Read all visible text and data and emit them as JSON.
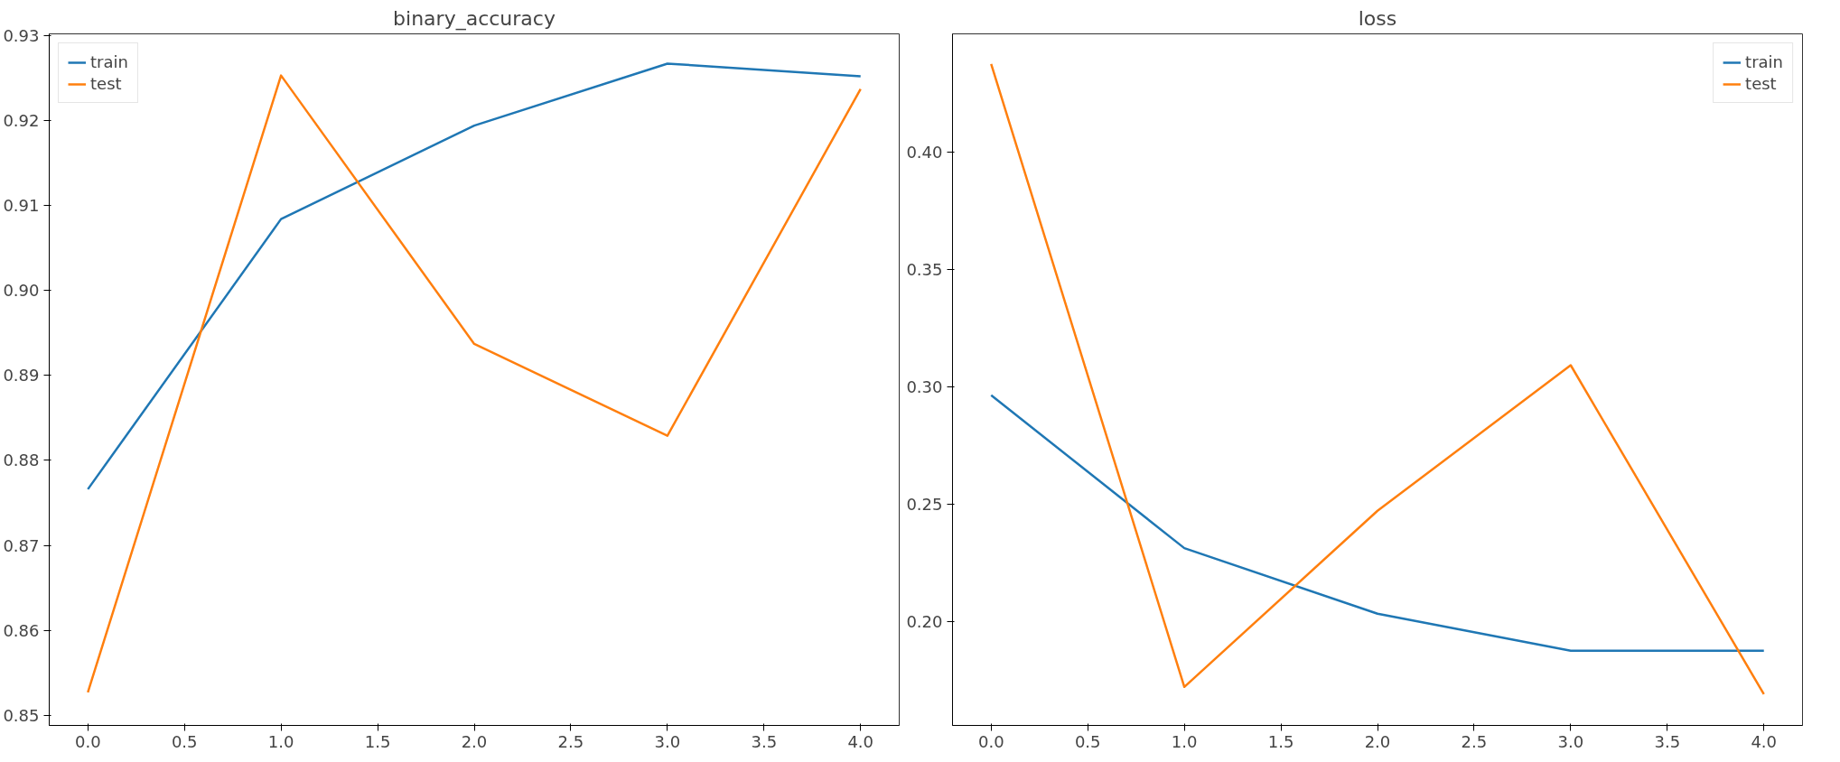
{
  "chart_data": [
    {
      "type": "line",
      "title": "binary_accuracy",
      "x": [
        0,
        1,
        2,
        3,
        4
      ],
      "series": [
        {
          "name": "train",
          "color": "#1f77b4",
          "values": [
            0.8766,
            0.9084,
            0.9194,
            0.9267,
            0.9252
          ]
        },
        {
          "name": "test",
          "color": "#ff7f0e",
          "values": [
            0.8527,
            0.9253,
            0.8937,
            0.8829,
            0.9237
          ]
        }
      ],
      "xlim": [
        -0.2,
        4.2
      ],
      "ylim": [
        0.8488,
        0.9302
      ],
      "xticks": [
        {
          "value": 0,
          "label": "0.0"
        },
        {
          "value": 0.5,
          "label": "0.5"
        },
        {
          "value": 1,
          "label": "1.0"
        },
        {
          "value": 1.5,
          "label": "1.5"
        },
        {
          "value": 2,
          "label": "2.0"
        },
        {
          "value": 2.5,
          "label": "2.5"
        },
        {
          "value": 3,
          "label": "3.0"
        },
        {
          "value": 3.5,
          "label": "3.5"
        },
        {
          "value": 4,
          "label": "4.0"
        }
      ],
      "yticks": [
        0.85,
        0.86,
        0.87,
        0.88,
        0.89,
        {
          "value": 0.9,
          "label": "0.90"
        },
        0.91,
        0.92,
        0.93
      ],
      "grid": false,
      "legend": "top left"
    },
    {
      "type": "line",
      "title": "loss",
      "x": [
        0,
        1,
        2,
        3,
        4
      ],
      "series": [
        {
          "name": "train",
          "color": "#1f77b4",
          "values": [
            0.2963,
            0.2312,
            0.2033,
            0.1875,
            0.1875
          ]
        },
        {
          "name": "test",
          "color": "#ff7f0e",
          "values": [
            0.4374,
            0.1721,
            0.2471,
            0.3091,
            0.169
          ]
        }
      ],
      "xlim": [
        -0.2,
        4.2
      ],
      "ylim": [
        0.1557,
        0.4502
      ],
      "xticks": [
        {
          "value": 0,
          "label": "0.0"
        },
        {
          "value": 0.5,
          "label": "0.5"
        },
        {
          "value": 1,
          "label": "1.0"
        },
        {
          "value": 1.5,
          "label": "1.5"
        },
        {
          "value": 2,
          "label": "2.0"
        },
        {
          "value": 2.5,
          "label": "2.5"
        },
        {
          "value": 3,
          "label": "3.0"
        },
        {
          "value": 3.5,
          "label": "3.5"
        },
        {
          "value": 4,
          "label": "4.0"
        }
      ],
      "yticks": [
        {
          "value": 0.2,
          "label": "0.20"
        },
        0.25,
        {
          "value": 0.3,
          "label": "0.30"
        },
        0.35,
        {
          "value": 0.4,
          "label": "0.40"
        }
      ],
      "grid": false,
      "legend": "top right"
    }
  ]
}
